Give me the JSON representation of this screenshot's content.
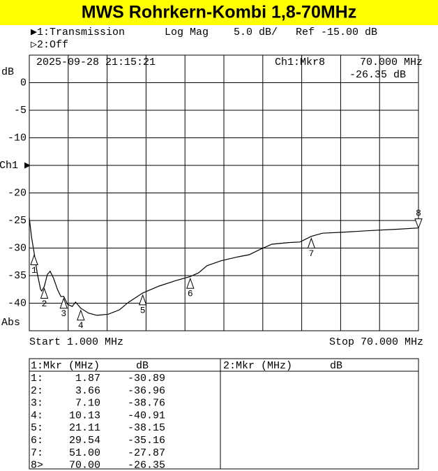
{
  "chart_data": {
    "type": "line",
    "title": "MWS Rohrkern-Kombi 1,8-70MHz",
    "channel1": {
      "name": "▶1:Transmission",
      "format": "Log Mag",
      "scale": "5.0 dB/",
      "ref": "Ref -15.00 dB"
    },
    "channel2": "▷2:Off",
    "timestamp": "2025-09-28 21:15:21",
    "readout": {
      "marker": "Ch1:Mkr8",
      "frequency": "70.000 MHz",
      "level": "-26.35 dB"
    },
    "y_label": "dB",
    "y_mode": "Abs",
    "x_start": "Start 1.000 MHz",
    "x_stop": "Stop 70.000 MHz",
    "xlim": [
      1,
      70
    ],
    "ylim": [
      -45,
      5
    ],
    "yticks": [
      0,
      -5,
      -10,
      {
        "value": -15,
        "label": "Ch1 ▶"
      },
      -20,
      -25,
      -30,
      -35,
      -40
    ],
    "color": "#000000",
    "x": [
      1,
      1.4,
      1.87,
      2.4,
      3.0,
      3.2,
      3.66,
      4.2,
      4.7,
      5.3,
      6.0,
      6.6,
      7.1,
      7.8,
      8.6,
      9.2,
      10.13,
      11.5,
      13,
      15,
      17,
      18.5,
      21.11,
      24,
      27,
      29.54,
      31,
      32.5,
      35,
      38,
      40,
      42,
      44,
      47,
      49,
      51,
      53,
      57,
      62,
      66,
      70
    ],
    "values": [
      -24.5,
      -28,
      -30.89,
      -34.5,
      -37.5,
      -37.8,
      -36.96,
      -34.8,
      -34.2,
      -35.5,
      -37.5,
      -38.8,
      -38.76,
      -40.2,
      -40.6,
      -39.8,
      -40.91,
      -41.8,
      -42.2,
      -42.0,
      -41.2,
      -39.9,
      -38.15,
      -36.9,
      -35.9,
      -35.16,
      -34.5,
      -33.2,
      -32.3,
      -31.6,
      -31.2,
      -30.2,
      -29.3,
      -29.0,
      -28.9,
      -27.87,
      -27.3,
      -27.1,
      -26.8,
      -26.6,
      -26.35
    ],
    "markers": [
      {
        "label": "1",
        "x": 1.87,
        "value": -30.89
      },
      {
        "label": "2",
        "x": 3.66,
        "value": -36.96
      },
      {
        "label": "3",
        "x": 7.1,
        "value": -38.76
      },
      {
        "label": "4",
        "x": 10.13,
        "value": -40.91
      },
      {
        "label": "5",
        "x": 21.11,
        "value": -38.15
      },
      {
        "label": "6",
        "x": 29.54,
        "value": -35.16
      },
      {
        "label": "7",
        "x": 51.0,
        "value": -27.87
      },
      {
        "label": "8",
        "x": 70.0,
        "value": -26.35
      }
    ]
  },
  "marker_table": {
    "left_header": [
      "1:Mkr (MHz)",
      "dB"
    ],
    "right_header": [
      "2:Mkr (MHz)",
      "dB"
    ],
    "rows": [
      [
        "1:",
        "1.87",
        "-30.89"
      ],
      [
        "2:",
        "3.66",
        "-36.96"
      ],
      [
        "3:",
        "7.10",
        "-38.76"
      ],
      [
        "4:",
        "10.13",
        "-40.91"
      ],
      [
        "5:",
        "21.11",
        "-38.15"
      ],
      [
        "6:",
        "29.54",
        "-35.16"
      ],
      [
        "7:",
        "51.00",
        "-27.87"
      ],
      [
        "8>",
        "70.00",
        "-26.35"
      ]
    ]
  }
}
